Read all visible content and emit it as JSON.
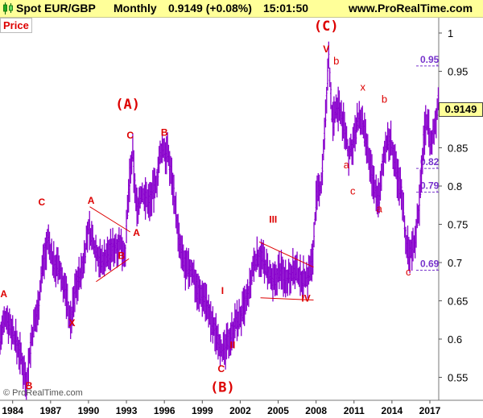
{
  "header": {
    "symbol": "Spot EUR/GBP",
    "period": "Monthly",
    "quote": "0.9149 (+0.08%)",
    "time": "15:01:50",
    "site": "www.ProRealTime.com"
  },
  "panel_label": "Price",
  "copyright": "© ProRealTime.com",
  "current_value": "0.9149",
  "colors": {
    "series": "#8800cc",
    "wave_label": "#dd0000",
    "fib": "#7733cc",
    "header_bg": "#ffff99"
  },
  "chart_data": {
    "type": "line",
    "yticks": [
      "0.55",
      "0.6",
      "0.65",
      "0.7",
      "0.75",
      "0.8",
      "0.85",
      "0.9",
      "0.95",
      "1"
    ],
    "xticks": [
      "1984",
      "1987",
      "1990",
      "1993",
      "1996",
      "1999",
      "2002",
      "2005",
      "2008",
      "2011",
      "2014",
      "2017"
    ],
    "ylim": [
      0.52,
      1.02
    ],
    "xlim": [
      1983.0,
      2017.7
    ],
    "price_points": [
      [
        1983.0,
        0.6
      ],
      [
        1983.5,
        0.63
      ],
      [
        1984.0,
        0.61
      ],
      [
        1984.6,
        0.58
      ],
      [
        1985.1,
        0.545
      ],
      [
        1985.5,
        0.6
      ],
      [
        1986.0,
        0.64
      ],
      [
        1986.4,
        0.7
      ],
      [
        1986.8,
        0.73
      ],
      [
        1987.2,
        0.7
      ],
      [
        1987.7,
        0.69
      ],
      [
        1988.2,
        0.66
      ],
      [
        1988.6,
        0.62
      ],
      [
        1989.0,
        0.67
      ],
      [
        1989.5,
        0.69
      ],
      [
        1990.0,
        0.745
      ],
      [
        1990.5,
        0.72
      ],
      [
        1991.0,
        0.7
      ],
      [
        1991.5,
        0.71
      ],
      [
        1992.0,
        0.72
      ],
      [
        1992.5,
        0.725
      ],
      [
        1992.9,
        0.71
      ],
      [
        1993.2,
        0.8
      ],
      [
        1993.5,
        0.84
      ],
      [
        1993.8,
        0.77
      ],
      [
        1994.2,
        0.79
      ],
      [
        1994.8,
        0.78
      ],
      [
        1995.3,
        0.8
      ],
      [
        1995.8,
        0.85
      ],
      [
        1996.3,
        0.84
      ],
      [
        1996.7,
        0.8
      ],
      [
        1997.2,
        0.72
      ],
      [
        1997.7,
        0.69
      ],
      [
        1998.2,
        0.69
      ],
      [
        1998.7,
        0.66
      ],
      [
        1999.2,
        0.655
      ],
      [
        1999.7,
        0.62
      ],
      [
        2000.3,
        0.6
      ],
      [
        2000.7,
        0.58
      ],
      [
        2001.1,
        0.6
      ],
      [
        2001.6,
        0.62
      ],
      [
        2002.1,
        0.63
      ],
      [
        2002.7,
        0.66
      ],
      [
        2003.1,
        0.7
      ],
      [
        2003.6,
        0.71
      ],
      [
        2004.1,
        0.69
      ],
      [
        2004.6,
        0.67
      ],
      [
        2005.1,
        0.69
      ],
      [
        2005.6,
        0.68
      ],
      [
        2006.2,
        0.69
      ],
      [
        2006.8,
        0.68
      ],
      [
        2007.3,
        0.68
      ],
      [
        2007.7,
        0.7
      ],
      [
        2008.0,
        0.78
      ],
      [
        2008.4,
        0.8
      ],
      [
        2008.8,
        0.9
      ],
      [
        2009.0,
        0.97
      ],
      [
        2009.3,
        0.88
      ],
      [
        2009.6,
        0.9
      ],
      [
        2009.9,
        0.9
      ],
      [
        2010.3,
        0.87
      ],
      [
        2010.6,
        0.84
      ],
      [
        2011.0,
        0.86
      ],
      [
        2011.4,
        0.89
      ],
      [
        2011.8,
        0.87
      ],
      [
        2012.2,
        0.83
      ],
      [
        2012.6,
        0.8
      ],
      [
        2013.0,
        0.78
      ],
      [
        2013.4,
        0.85
      ],
      [
        2013.9,
        0.86
      ],
      [
        2014.3,
        0.82
      ],
      [
        2014.8,
        0.79
      ],
      [
        2015.1,
        0.73
      ],
      [
        2015.4,
        0.71
      ],
      [
        2015.8,
        0.73
      ],
      [
        2016.2,
        0.78
      ],
      [
        2016.5,
        0.86
      ],
      [
        2016.8,
        0.89
      ],
      [
        2017.1,
        0.85
      ],
      [
        2017.4,
        0.88
      ],
      [
        2017.7,
        0.915
      ]
    ],
    "fib_levels": [
      {
        "label": "0.95",
        "value": 0.957
      },
      {
        "label": "0.82",
        "value": 0.823
      },
      {
        "label": "0.79",
        "value": 0.792
      },
      {
        "label": "0.69",
        "value": 0.69
      }
    ],
    "wave_labels": [
      {
        "text": "A",
        "x": 1983.3,
        "y": 0.655
      },
      {
        "text": "B",
        "x": 1985.3,
        "y": 0.535
      },
      {
        "text": "C",
        "x": 1986.3,
        "y": 0.775
      },
      {
        "text": "X",
        "x": 1988.7,
        "y": 0.617
      },
      {
        "text": "A",
        "x": 1990.2,
        "y": 0.777
      },
      {
        "text": "B",
        "x": 1992.6,
        "y": 0.705
      },
      {
        "text": "A",
        "x": 1993.8,
        "y": 0.735
      },
      {
        "text": "C",
        "x": 1993.3,
        "y": 0.862
      },
      {
        "text": "(A)",
        "x": 1993.1,
        "y": 0.901
      },
      {
        "text": "B",
        "x": 1996.0,
        "y": 0.866
      },
      {
        "text": "I",
        "x": 2000.6,
        "y": 0.659
      },
      {
        "text": "II",
        "x": 2001.4,
        "y": 0.588
      },
      {
        "text": "C",
        "x": 2000.5,
        "y": 0.557
      },
      {
        "text": "(B)",
        "x": 2000.6,
        "y": 0.531
      },
      {
        "text": "III",
        "x": 2004.6,
        "y": 0.752
      },
      {
        "text": "IV",
        "x": 2007.2,
        "y": 0.649
      },
      {
        "text": "V",
        "x": 2008.8,
        "y": 0.975
      },
      {
        "text": "(C)",
        "x": 2008.8,
        "y": 1.003
      },
      {
        "text": "b",
        "x": 2009.6,
        "y": 0.959
      },
      {
        "text": "a",
        "x": 2010.4,
        "y": 0.823
      },
      {
        "text": "x",
        "x": 2011.7,
        "y": 0.925
      },
      {
        "text": "c",
        "x": 2010.9,
        "y": 0.789
      },
      {
        "text": "b",
        "x": 2013.4,
        "y": 0.909
      },
      {
        "text": "a",
        "x": 2013.0,
        "y": 0.766
      },
      {
        "text": "c",
        "x": 2015.3,
        "y": 0.683
      }
    ],
    "trend_lines": [
      [
        [
          1990.1,
          0.773
        ],
        [
          1993.3,
          0.74
        ]
      ],
      [
        [
          1990.6,
          0.675
        ],
        [
          1993.2,
          0.705
        ]
      ],
      [
        [
          2003.5,
          0.727
        ],
        [
          2007.8,
          0.694
        ]
      ],
      [
        [
          2003.6,
          0.654
        ],
        [
          2007.8,
          0.651
        ]
      ]
    ]
  }
}
